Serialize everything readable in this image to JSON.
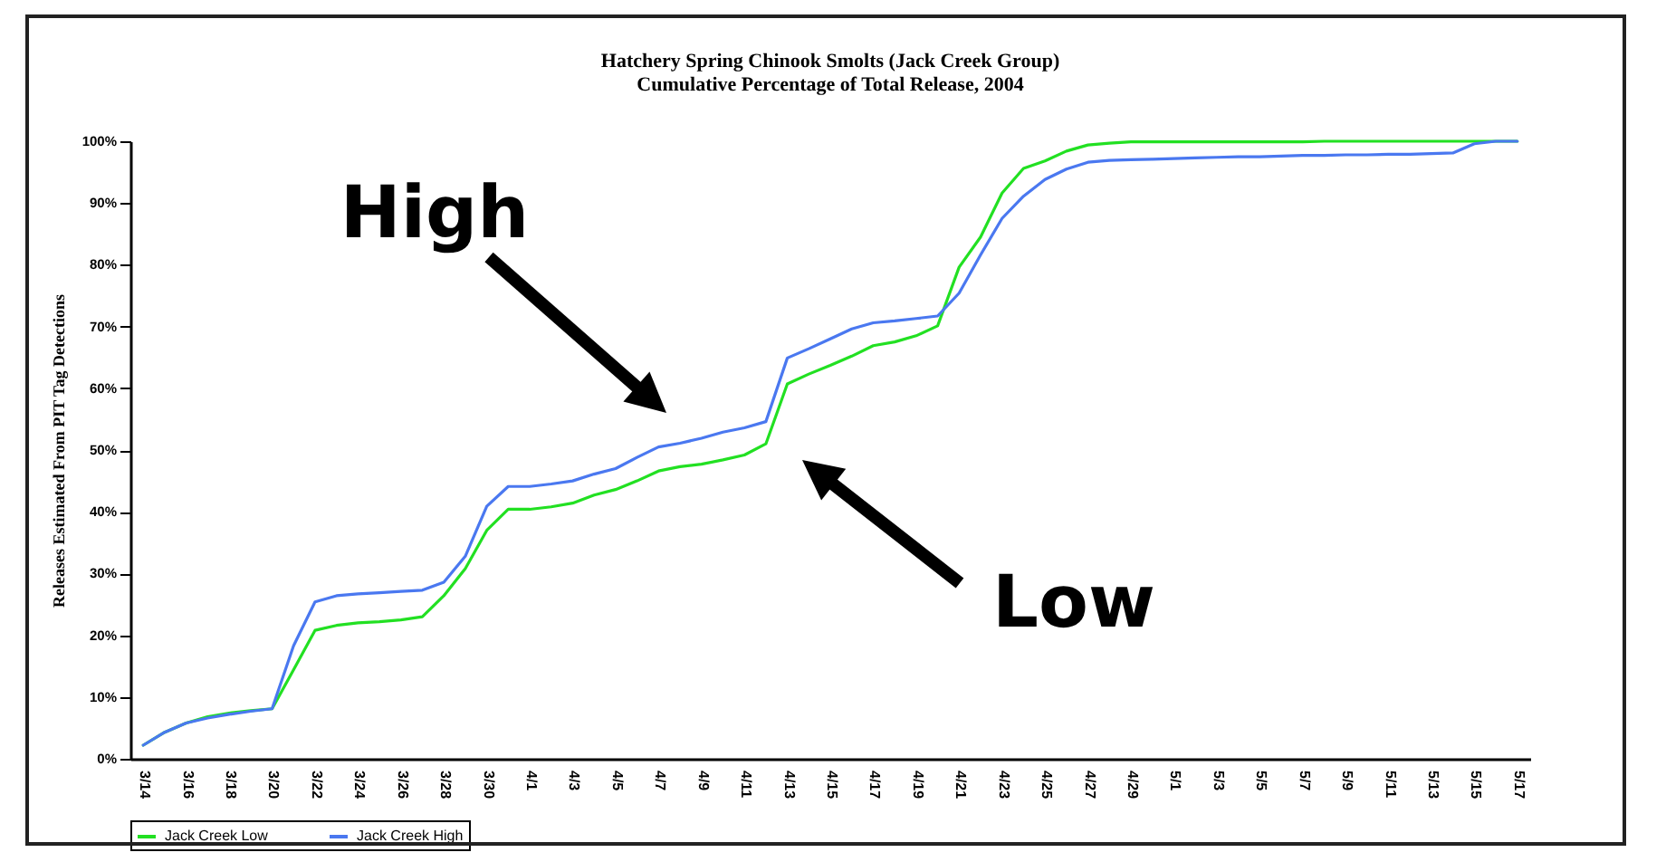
{
  "chart_data": {
    "type": "line",
    "title": "Hatchery Spring Chinook Smolts (Jack Creek Group)",
    "subtitle": "Cumulative Percentage of Total Release, 2004",
    "ylabel": "Releases Estimated From PIT Tag Detections",
    "categories": [
      "3/14",
      null,
      "3/16",
      null,
      "3/18",
      null,
      "3/20",
      null,
      "3/22",
      null,
      "3/24",
      null,
      "3/26",
      null,
      "3/28",
      null,
      "3/30",
      null,
      "4/1",
      null,
      "4/3",
      null,
      "4/5",
      null,
      "4/7",
      null,
      "4/9",
      null,
      "4/11",
      null,
      "4/13",
      null,
      "4/15",
      null,
      "4/17",
      null,
      "4/19",
      null,
      "4/21",
      null,
      "4/23",
      null,
      "4/25",
      null,
      "4/27",
      null,
      "4/29",
      null,
      "5/1",
      null,
      "5/3",
      null,
      "5/5",
      null,
      "5/7",
      null,
      "5/9",
      null,
      "5/11",
      null,
      "5/13",
      null,
      "5/15",
      null,
      "5/17"
    ],
    "series": [
      {
        "name": "Jack Creek Low",
        "color": "#22e022",
        "values": [
          2.2,
          4.3,
          5.8,
          6.8,
          7.4,
          7.8,
          8.1,
          14.4,
          20.8,
          21.6,
          22.0,
          22.2,
          22.5,
          23.0,
          26.4,
          30.8,
          37.0,
          40.4,
          40.4,
          40.8,
          41.4,
          42.7,
          43.6,
          45.0,
          46.6,
          47.3,
          47.7,
          48.4,
          49.2,
          51.0,
          60.7,
          62.3,
          63.7,
          65.2,
          66.9,
          67.5,
          68.5,
          70.1,
          79.6,
          84.5,
          91.6,
          95.6,
          96.8,
          98.4,
          99.4,
          99.7,
          99.9,
          99.9,
          99.9,
          99.9,
          99.9,
          99.9,
          99.9,
          99.9,
          99.9,
          100,
          100,
          100,
          100,
          100,
          100,
          100,
          100,
          100,
          100
        ]
      },
      {
        "name": "Jack Creek High",
        "color": "#4a78f0",
        "values": [
          2.2,
          4.3,
          5.8,
          6.6,
          7.2,
          7.7,
          8.1,
          18.3,
          25.4,
          26.4,
          26.7,
          26.9,
          27.1,
          27.3,
          28.6,
          32.8,
          40.9,
          44.1,
          44.1,
          44.5,
          45.0,
          46.1,
          47.0,
          48.8,
          50.5,
          51.1,
          51.9,
          52.9,
          53.6,
          54.6,
          64.9,
          66.4,
          68.0,
          69.6,
          70.6,
          70.9,
          71.3,
          71.7,
          75.4,
          81.6,
          87.5,
          91.1,
          93.8,
          95.5,
          96.6,
          96.9,
          97.0,
          97.1,
          97.2,
          97.3,
          97.4,
          97.5,
          97.5,
          97.6,
          97.7,
          97.7,
          97.8,
          97.8,
          97.9,
          97.9,
          98.0,
          98.1,
          99.6,
          100,
          100
        ]
      }
    ],
    "ylim": [
      0,
      100
    ],
    "yticks": [
      {
        "value": 0,
        "label": "0%"
      },
      {
        "value": 10,
        "label": "10%"
      },
      {
        "value": 20,
        "label": "20%"
      },
      {
        "value": 30,
        "label": "30%"
      },
      {
        "value": 40,
        "label": "40%"
      },
      {
        "value": 50,
        "label": "50%"
      },
      {
        "value": 60,
        "label": "60%"
      },
      {
        "value": 70,
        "label": "70%"
      },
      {
        "value": 80,
        "label": "80%"
      },
      {
        "value": 90,
        "label": "90%"
      },
      {
        "value": 100,
        "label": "100%"
      }
    ],
    "annotations": [
      "High",
      "Low"
    ],
    "grid": false,
    "legend": "bottom",
    "line_style": "solid",
    "marker": "none"
  }
}
